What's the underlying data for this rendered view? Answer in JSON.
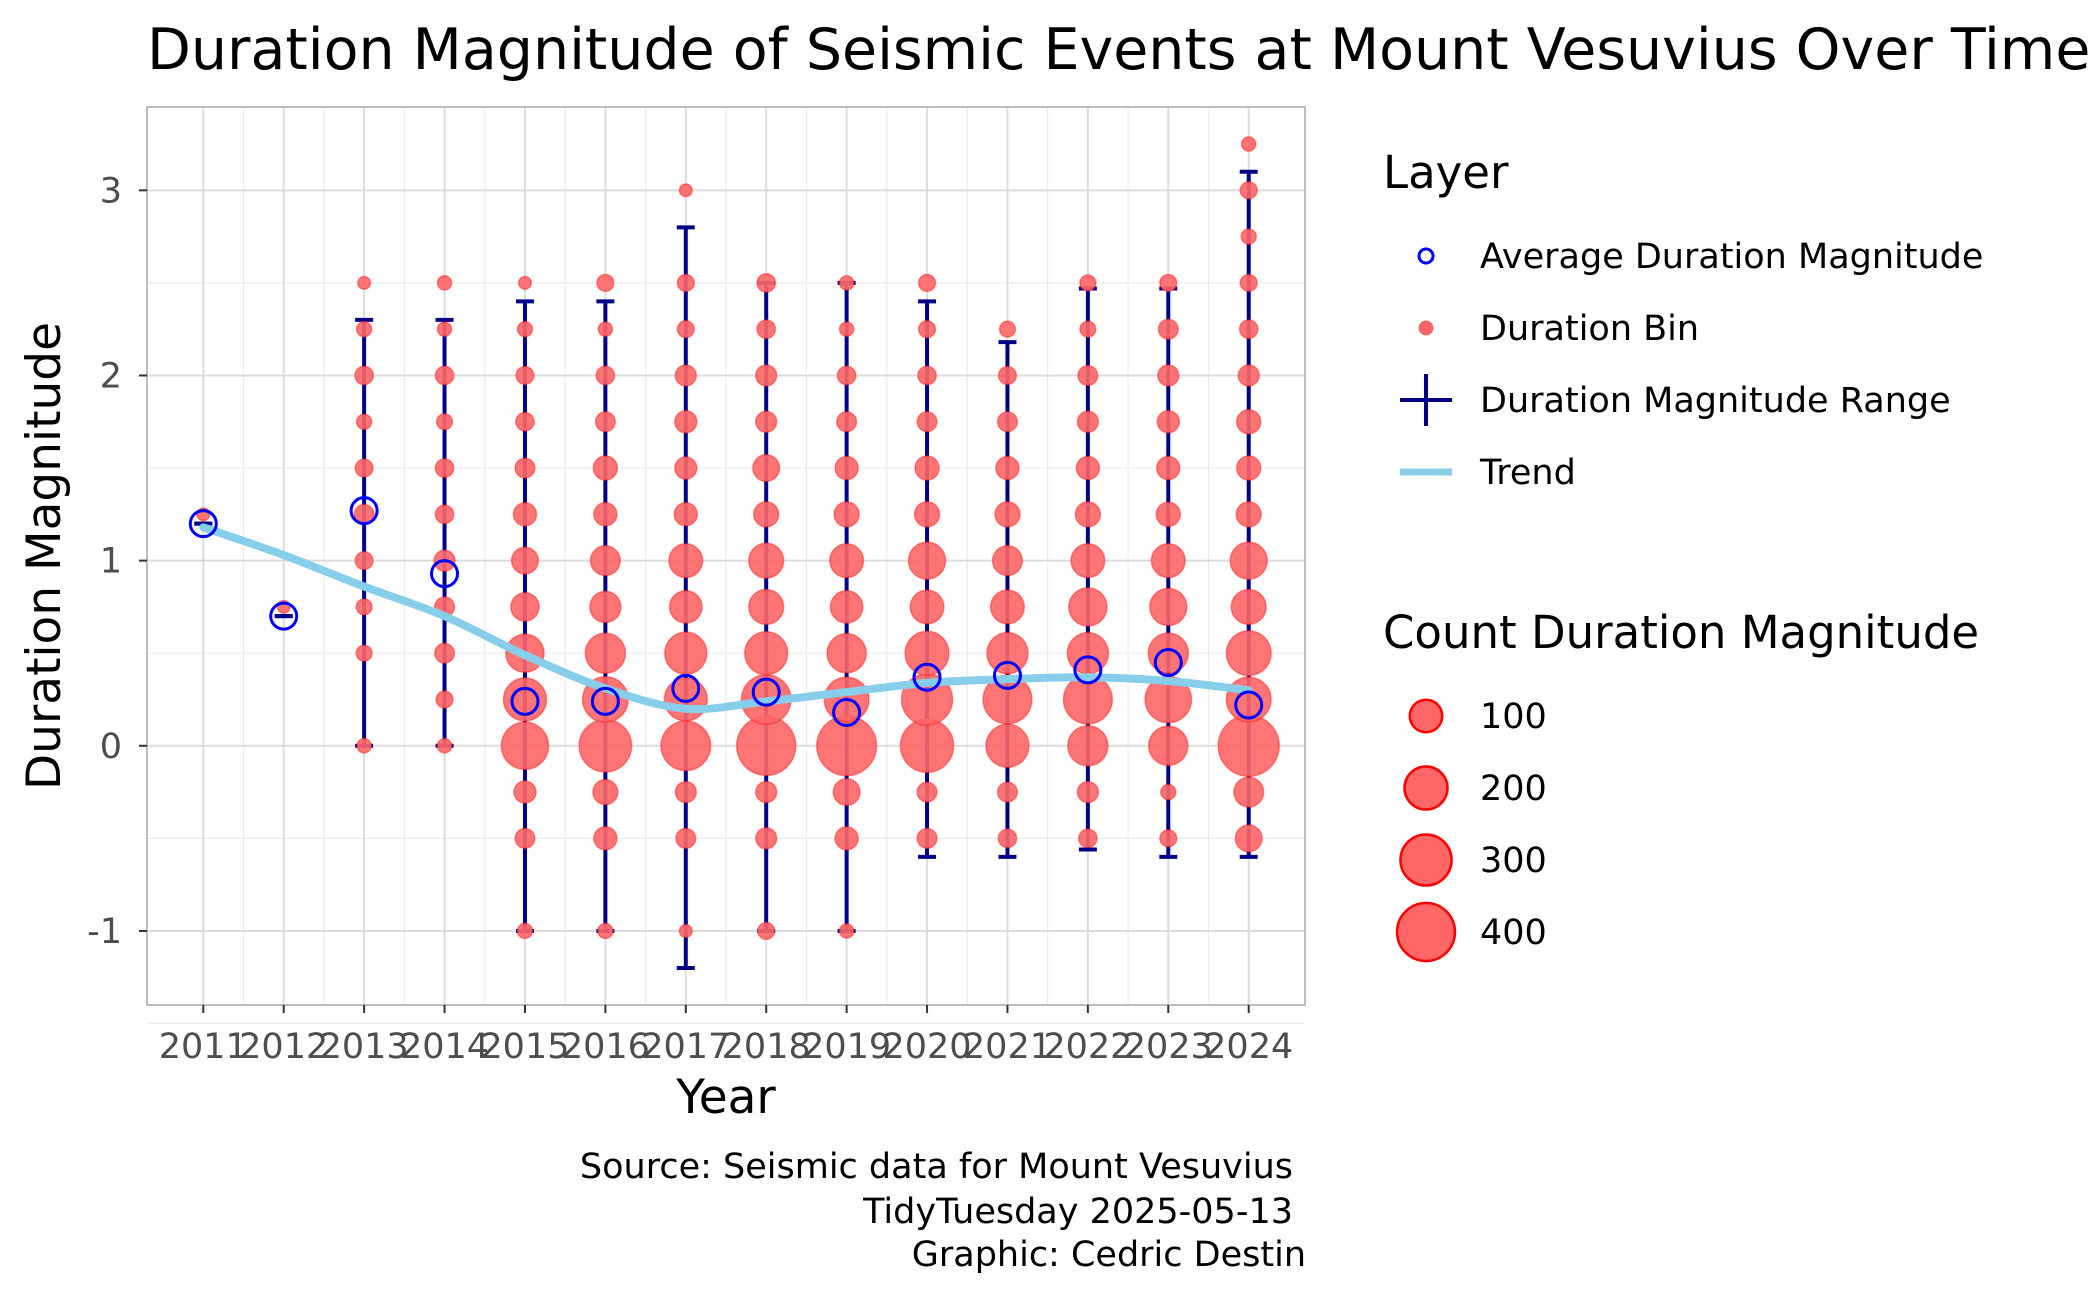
{
  "chart_data": {
    "type": "scatter",
    "title": "Duration Magnitude of Seismic Events at Mount Vesuvius Over Time",
    "xlabel": "Year",
    "ylabel": "Duration Magnitude",
    "x_ticks": [
      "2011",
      "2012",
      "2013",
      "2014",
      "2015",
      "2016",
      "2017",
      "2018",
      "2019",
      "2020",
      "2021",
      "2022",
      "2023",
      "2024"
    ],
    "y_ticks": [
      "-1",
      "0",
      "1",
      "2",
      "3"
    ],
    "xlim": [
      2010.3,
      2024.7
    ],
    "ylim": [
      -1.4,
      3.45
    ],
    "grid": true,
    "legend_position": "right",
    "caption": [
      "Source: Seismic data for Mount Vesuvius",
      "TidyTuesday 2025-05-13",
      "Graphic: Cedric Destin"
    ],
    "legend": {
      "layer_title": "Layer",
      "layer_items": [
        {
          "label": "Average Duration Magnitude",
          "kind": "average"
        },
        {
          "label": "Duration Bin",
          "kind": "bin"
        },
        {
          "label": "Duration Magnitude Range",
          "kind": "range"
        },
        {
          "label": "Trend",
          "kind": "trend"
        }
      ],
      "size_title": "Count Duration Magnitude",
      "size_items": [
        {
          "label": "100",
          "value": 100
        },
        {
          "label": "200",
          "value": 200
        },
        {
          "label": "300",
          "value": 300
        },
        {
          "label": "400",
          "value": 400
        }
      ]
    },
    "colors": {
      "bin_fill": "#ff6666",
      "bin_stroke": "#ff2222",
      "average": "#0000ff",
      "range": "#00008b",
      "trend": "#87ceeb",
      "grid_major": "#dcdcdc",
      "grid_minor": "#ececec",
      "panel_border": "#bdbdbd"
    },
    "series": [
      {
        "name": "Average Duration Magnitude",
        "x": [
          2011,
          2012,
          2013,
          2014,
          2015,
          2016,
          2017,
          2018,
          2019,
          2020,
          2021,
          2022,
          2023,
          2024
        ],
        "y": [
          1.2,
          0.7,
          1.27,
          0.93,
          0.24,
          0.24,
          0.31,
          0.29,
          0.18,
          0.37,
          0.38,
          0.41,
          0.45,
          0.22
        ]
      },
      {
        "name": "Duration Magnitude Range",
        "x": [
          2011,
          2012,
          2013,
          2014,
          2015,
          2016,
          2017,
          2018,
          2019,
          2020,
          2021,
          2022,
          2023,
          2024
        ],
        "ymin": [
          1.2,
          0.7,
          0,
          0,
          -1,
          -1,
          -1.2,
          -1,
          -1,
          -0.6,
          -0.6,
          -0.56,
          -0.6,
          -0.6
        ],
        "ymax": [
          1.2,
          0.7,
          2.3,
          2.3,
          2.4,
          2.4,
          2.8,
          2.5,
          2.5,
          2.4,
          2.18,
          2.47,
          2.47,
          3.1
        ]
      },
      {
        "name": "Trend",
        "x": [
          2011,
          2012,
          2013,
          2014,
          2015,
          2016,
          2017,
          2018,
          2019,
          2020,
          2021,
          2022,
          2023,
          2024
        ],
        "y": [
          1.18,
          1.03,
          0.86,
          0.7,
          0.49,
          0.31,
          0.2,
          0.24,
          0.29,
          0.34,
          0.36,
          0.37,
          0.35,
          0.3
        ]
      },
      {
        "name": "Duration Bin",
        "points": [
          [
            2011,
            1.25,
            5
          ],
          [
            2012,
            0.75,
            5
          ],
          [
            2013,
            0,
            8
          ],
          [
            2013,
            0.5,
            12
          ],
          [
            2013,
            0.75,
            12
          ],
          [
            2013,
            1,
            18
          ],
          [
            2013,
            1.25,
            25
          ],
          [
            2013,
            1.5,
            18
          ],
          [
            2013,
            1.75,
            10
          ],
          [
            2013,
            2,
            20
          ],
          [
            2013,
            2.25,
            10
          ],
          [
            2013,
            2.5,
            5
          ],
          [
            2014,
            0,
            8
          ],
          [
            2014,
            0.25,
            15
          ],
          [
            2014,
            0.5,
            25
          ],
          [
            2014,
            0.75,
            25
          ],
          [
            2014,
            1,
            30
          ],
          [
            2014,
            1.25,
            20
          ],
          [
            2014,
            1.5,
            20
          ],
          [
            2014,
            1.75,
            12
          ],
          [
            2014,
            2,
            20
          ],
          [
            2014,
            2.25,
            8
          ],
          [
            2014,
            2.5,
            8
          ],
          [
            2015,
            -1,
            10
          ],
          [
            2015,
            -0.5,
            25
          ],
          [
            2015,
            -0.25,
            35
          ],
          [
            2015,
            0,
            250
          ],
          [
            2015,
            0.25,
            200
          ],
          [
            2015,
            0.5,
            150
          ],
          [
            2015,
            0.75,
            70
          ],
          [
            2015,
            1,
            60
          ],
          [
            2015,
            1.25,
            40
          ],
          [
            2015,
            1.5,
            25
          ],
          [
            2015,
            1.75,
            20
          ],
          [
            2015,
            2,
            18
          ],
          [
            2015,
            2.25,
            10
          ],
          [
            2015,
            2.5,
            5
          ],
          [
            2016,
            -1,
            10
          ],
          [
            2016,
            -0.5,
            40
          ],
          [
            2016,
            -0.25,
            50
          ],
          [
            2016,
            0,
            320
          ],
          [
            2016,
            0.25,
            230
          ],
          [
            2016,
            0.5,
            170
          ],
          [
            2016,
            0.75,
            90
          ],
          [
            2016,
            1,
            80
          ],
          [
            2016,
            1.25,
            40
          ],
          [
            2016,
            1.5,
            45
          ],
          [
            2016,
            1.75,
            25
          ],
          [
            2016,
            2,
            20
          ],
          [
            2016,
            2.25,
            8
          ],
          [
            2016,
            2.5,
            15
          ],
          [
            2017,
            -1,
            5
          ],
          [
            2017,
            -0.5,
            25
          ],
          [
            2017,
            -0.25,
            30
          ],
          [
            2017,
            0,
            280
          ],
          [
            2017,
            0.25,
            200
          ],
          [
            2017,
            0.5,
            190
          ],
          [
            2017,
            0.75,
            100
          ],
          [
            2017,
            1,
            110
          ],
          [
            2017,
            1.25,
            40
          ],
          [
            2017,
            1.5,
            35
          ],
          [
            2017,
            1.75,
            35
          ],
          [
            2017,
            2,
            30
          ],
          [
            2017,
            2.25,
            15
          ],
          [
            2017,
            2.5,
            15
          ],
          [
            2017,
            3,
            5
          ],
          [
            2018,
            -1,
            15
          ],
          [
            2018,
            -0.5,
            30
          ],
          [
            2018,
            -0.25,
            30
          ],
          [
            2018,
            0,
            420
          ],
          [
            2018,
            0.25,
            280
          ],
          [
            2018,
            0.5,
            200
          ],
          [
            2018,
            0.75,
            120
          ],
          [
            2018,
            1,
            120
          ],
          [
            2018,
            1.25,
            50
          ],
          [
            2018,
            1.5,
            60
          ],
          [
            2018,
            1.75,
            30
          ],
          [
            2018,
            2,
            30
          ],
          [
            2018,
            2.25,
            20
          ],
          [
            2018,
            2.5,
            20
          ],
          [
            2019,
            -1,
            8
          ],
          [
            2019,
            -0.5,
            40
          ],
          [
            2019,
            -0.25,
            60
          ],
          [
            2019,
            0,
            430
          ],
          [
            2019,
            0.25,
            220
          ],
          [
            2019,
            0.5,
            160
          ],
          [
            2019,
            0.75,
            100
          ],
          [
            2019,
            1,
            110
          ],
          [
            2019,
            1.25,
            50
          ],
          [
            2019,
            1.5,
            40
          ],
          [
            2019,
            1.75,
            25
          ],
          [
            2019,
            2,
            20
          ],
          [
            2019,
            2.25,
            8
          ],
          [
            2019,
            2.5,
            8
          ],
          [
            2020,
            -0.5,
            25
          ],
          [
            2020,
            -0.25,
            25
          ],
          [
            2020,
            0,
            330
          ],
          [
            2020,
            0.25,
            300
          ],
          [
            2020,
            0.5,
            210
          ],
          [
            2020,
            0.75,
            110
          ],
          [
            2020,
            1,
            140
          ],
          [
            2020,
            1.25,
            50
          ],
          [
            2020,
            1.5,
            45
          ],
          [
            2020,
            1.75,
            25
          ],
          [
            2020,
            2,
            20
          ],
          [
            2020,
            2.25,
            15
          ],
          [
            2020,
            2.5,
            15
          ],
          [
            2021,
            -0.5,
            20
          ],
          [
            2021,
            -0.25,
            25
          ],
          [
            2021,
            0,
            200
          ],
          [
            2021,
            0.25,
            270
          ],
          [
            2021,
            0.5,
            180
          ],
          [
            2021,
            0.75,
            110
          ],
          [
            2021,
            1,
            80
          ],
          [
            2021,
            1.25,
            50
          ],
          [
            2021,
            1.5,
            40
          ],
          [
            2021,
            1.75,
            25
          ],
          [
            2021,
            2,
            18
          ],
          [
            2021,
            2.25,
            12
          ],
          [
            2022,
            -0.5,
            20
          ],
          [
            2022,
            -0.25,
            30
          ],
          [
            2022,
            0,
            170
          ],
          [
            2022,
            0.25,
            270
          ],
          [
            2022,
            0.5,
            180
          ],
          [
            2022,
            0.75,
            150
          ],
          [
            2022,
            1,
            110
          ],
          [
            2022,
            1.25,
            50
          ],
          [
            2022,
            1.5,
            40
          ],
          [
            2022,
            1.75,
            30
          ],
          [
            2022,
            2,
            25
          ],
          [
            2022,
            2.25,
            12
          ],
          [
            2022,
            2.5,
            12
          ],
          [
            2023,
            -0.5,
            15
          ],
          [
            2023,
            -0.25,
            10
          ],
          [
            2023,
            0,
            160
          ],
          [
            2023,
            0.25,
            240
          ],
          [
            2023,
            0.5,
            170
          ],
          [
            2023,
            0.75,
            140
          ],
          [
            2023,
            1,
            110
          ],
          [
            2023,
            1.25,
            45
          ],
          [
            2023,
            1.5,
            40
          ],
          [
            2023,
            1.75,
            35
          ],
          [
            2023,
            2,
            30
          ],
          [
            2023,
            2.25,
            25
          ],
          [
            2023,
            2.5,
            15
          ],
          [
            2024,
            -0.5,
            60
          ],
          [
            2024,
            -0.25,
            80
          ],
          [
            2024,
            0,
            450
          ],
          [
            2024,
            0.25,
            220
          ],
          [
            2024,
            0.5,
            220
          ],
          [
            2024,
            0.75,
            120
          ],
          [
            2024,
            1,
            140
          ],
          [
            2024,
            1.25,
            50
          ],
          [
            2024,
            1.5,
            45
          ],
          [
            2024,
            1.75,
            45
          ],
          [
            2024,
            2,
            30
          ],
          [
            2024,
            2.25,
            20
          ],
          [
            2024,
            2.5,
            15
          ],
          [
            2024,
            2.75,
            10
          ],
          [
            2024,
            3,
            15
          ],
          [
            2024,
            3.25,
            8
          ]
        ]
      }
    ]
  }
}
